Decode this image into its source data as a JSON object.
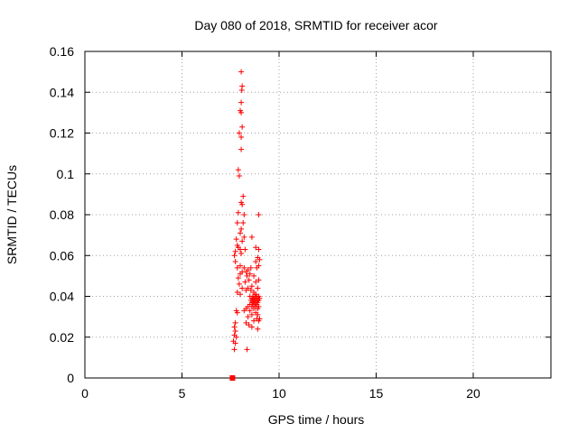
{
  "chart_data": {
    "type": "scatter",
    "title": "Day 080 of 2018, SRMTID for receiver acor",
    "xlabel": "GPS time / hours",
    "ylabel": "SRMTID / TECUs",
    "xlim": [
      0,
      24
    ],
    "ylim": [
      0,
      0.16
    ],
    "xticks": [
      "0",
      "5",
      "10",
      "15",
      "20"
    ],
    "yticks": [
      "0",
      "0.02",
      "0.04",
      "0.06",
      "0.08",
      "0.1",
      "0.12",
      "0.14",
      "0.16"
    ],
    "grid": true,
    "marker": "plus",
    "color": "#ff0000",
    "baseline_marker": {
      "x": 7.6,
      "y": 0.0,
      "shape": "square"
    },
    "points": [
      [
        8.05,
        0.15
      ],
      [
        8.1,
        0.143
      ],
      [
        8.08,
        0.141
      ],
      [
        8.05,
        0.135
      ],
      [
        8.0,
        0.131
      ],
      [
        8.05,
        0.13
      ],
      [
        8.1,
        0.123
      ],
      [
        7.95,
        0.12
      ],
      [
        8.05,
        0.118
      ],
      [
        8.05,
        0.112
      ],
      [
        7.9,
        0.102
      ],
      [
        7.95,
        0.099
      ],
      [
        8.15,
        0.089
      ],
      [
        8.05,
        0.086
      ],
      [
        8.1,
        0.085
      ],
      [
        7.9,
        0.081
      ],
      [
        8.2,
        0.08
      ],
      [
        8.95,
        0.08
      ],
      [
        7.85,
        0.076
      ],
      [
        8.15,
        0.076
      ],
      [
        8.05,
        0.073
      ],
      [
        8.0,
        0.071
      ],
      [
        8.2,
        0.069
      ],
      [
        7.8,
        0.068
      ],
      [
        8.6,
        0.069
      ],
      [
        8.1,
        0.067
      ],
      [
        7.85,
        0.065
      ],
      [
        7.9,
        0.064
      ],
      [
        8.0,
        0.063
      ],
      [
        8.25,
        0.063
      ],
      [
        8.8,
        0.064
      ],
      [
        8.95,
        0.063
      ],
      [
        7.75,
        0.062
      ],
      [
        8.05,
        0.061
      ],
      [
        7.7,
        0.06
      ],
      [
        8.9,
        0.059
      ],
      [
        9.0,
        0.058
      ],
      [
        8.8,
        0.057
      ],
      [
        7.75,
        0.057
      ],
      [
        8.0,
        0.055
      ],
      [
        8.95,
        0.055
      ],
      [
        7.85,
        0.054
      ],
      [
        8.2,
        0.054
      ],
      [
        8.4,
        0.053
      ],
      [
        8.55,
        0.054
      ],
      [
        8.85,
        0.054
      ],
      [
        8.3,
        0.052
      ],
      [
        8.1,
        0.052
      ],
      [
        8.0,
        0.051
      ],
      [
        8.5,
        0.051
      ],
      [
        8.35,
        0.05
      ],
      [
        8.7,
        0.05
      ],
      [
        7.9,
        0.049
      ],
      [
        8.45,
        0.048
      ],
      [
        8.95,
        0.048
      ],
      [
        8.25,
        0.047
      ],
      [
        8.8,
        0.047
      ],
      [
        7.95,
        0.046
      ],
      [
        8.6,
        0.045
      ],
      [
        8.1,
        0.044
      ],
      [
        8.4,
        0.044
      ],
      [
        8.9,
        0.044
      ],
      [
        8.3,
        0.043
      ],
      [
        8.55,
        0.043
      ],
      [
        7.85,
        0.042
      ],
      [
        8.7,
        0.042
      ],
      [
        8.0,
        0.041
      ],
      [
        8.8,
        0.041
      ],
      [
        8.5,
        0.04
      ],
      [
        8.65,
        0.04
      ],
      [
        8.75,
        0.04
      ],
      [
        8.85,
        0.04
      ],
      [
        8.95,
        0.04
      ],
      [
        8.6,
        0.039
      ],
      [
        8.7,
        0.039
      ],
      [
        8.8,
        0.039
      ],
      [
        8.9,
        0.039
      ],
      [
        9.0,
        0.039
      ],
      [
        8.55,
        0.038
      ],
      [
        8.65,
        0.038
      ],
      [
        8.75,
        0.038
      ],
      [
        8.85,
        0.038
      ],
      [
        8.95,
        0.038
      ],
      [
        8.6,
        0.037
      ],
      [
        8.7,
        0.037
      ],
      [
        8.8,
        0.037
      ],
      [
        8.9,
        0.037
      ],
      [
        8.5,
        0.036
      ],
      [
        8.65,
        0.036
      ],
      [
        8.75,
        0.036
      ],
      [
        8.85,
        0.036
      ],
      [
        8.4,
        0.035
      ],
      [
        8.6,
        0.035
      ],
      [
        8.8,
        0.035
      ],
      [
        8.95,
        0.035
      ],
      [
        8.3,
        0.034
      ],
      [
        8.7,
        0.034
      ],
      [
        8.9,
        0.034
      ],
      [
        8.2,
        0.033
      ],
      [
        8.5,
        0.033
      ],
      [
        8.8,
        0.032
      ],
      [
        7.8,
        0.033
      ],
      [
        7.85,
        0.032
      ],
      [
        8.6,
        0.031
      ],
      [
        8.9,
        0.031
      ],
      [
        8.4,
        0.03
      ],
      [
        8.85,
        0.029
      ],
      [
        9.0,
        0.029
      ],
      [
        8.7,
        0.028
      ],
      [
        8.95,
        0.028
      ],
      [
        7.75,
        0.027
      ],
      [
        8.3,
        0.027
      ],
      [
        8.45,
        0.026
      ],
      [
        7.7,
        0.025
      ],
      [
        8.6,
        0.025
      ],
      [
        8.9,
        0.024
      ],
      [
        7.75,
        0.023
      ],
      [
        7.7,
        0.021
      ],
      [
        7.8,
        0.02
      ],
      [
        7.65,
        0.018
      ],
      [
        7.75,
        0.017
      ],
      [
        7.7,
        0.014
      ],
      [
        8.35,
        0.014
      ]
    ]
  }
}
